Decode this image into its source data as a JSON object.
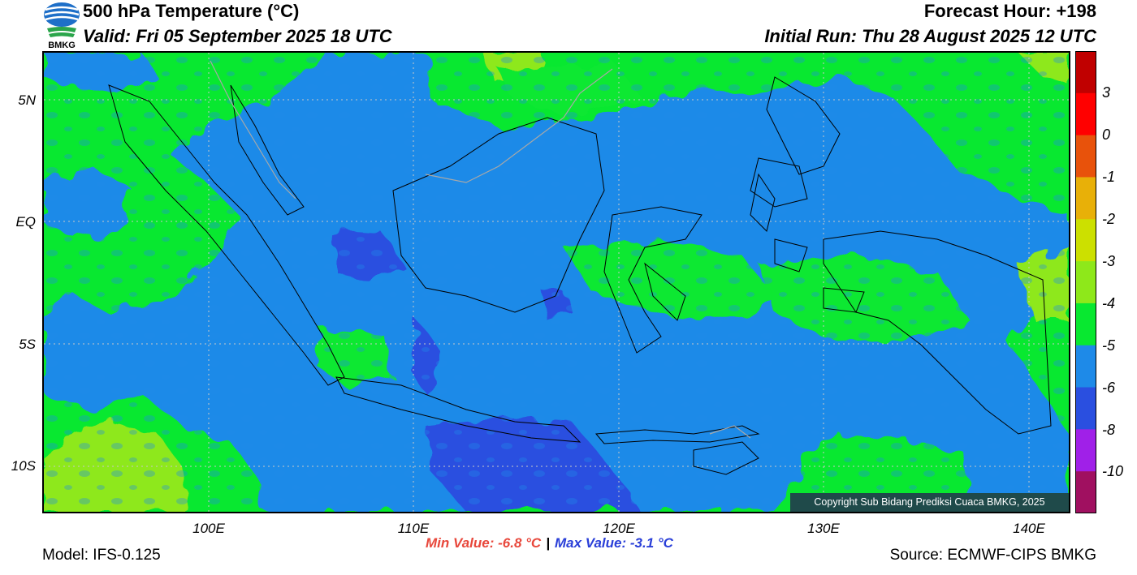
{
  "header": {
    "title": "500 hPa Temperature (°C)",
    "valid": "Valid: Fri 05 September 2025 18 UTC",
    "forecast_hour": "Forecast Hour: +198",
    "initial_run": "Initial Run: Thu 28 August 2025 12 UTC",
    "logo_text": "BMKG"
  },
  "axes": {
    "lat_labels": [
      "5N",
      "EQ",
      "5S",
      "10S"
    ],
    "lon_labels": [
      "100E",
      "110E",
      "120E",
      "130E",
      "140E"
    ]
  },
  "colorbar": {
    "labels": [
      "3",
      "0",
      "-1",
      "-2",
      "-3",
      "-4",
      "-5",
      "-6",
      "-8",
      "-10"
    ],
    "colors": [
      "#c00000",
      "#ff0000",
      "#e8520b",
      "#e8b008",
      "#cce000",
      "#8ee81a",
      "#08e830",
      "#1e8ae8",
      "#2a4fe0",
      "#a020e8",
      "#a01060"
    ]
  },
  "map_colors": {
    "green": "#08e830",
    "light_green": "#8ee81a",
    "blue": "#1e8ae8",
    "dark_blue": "#2a4fe0"
  },
  "copyright": "Copyright Sub Bidang Prediksi Cuaca BMKG, 2025",
  "stats": {
    "min": "Min Value: -6.8 °C",
    "separator": "|",
    "max": "Max Value: -3.1 °C"
  },
  "footer": {
    "model": "Model: IFS-0.125",
    "source": "Source: ECMWF-CIPS BMKG"
  }
}
